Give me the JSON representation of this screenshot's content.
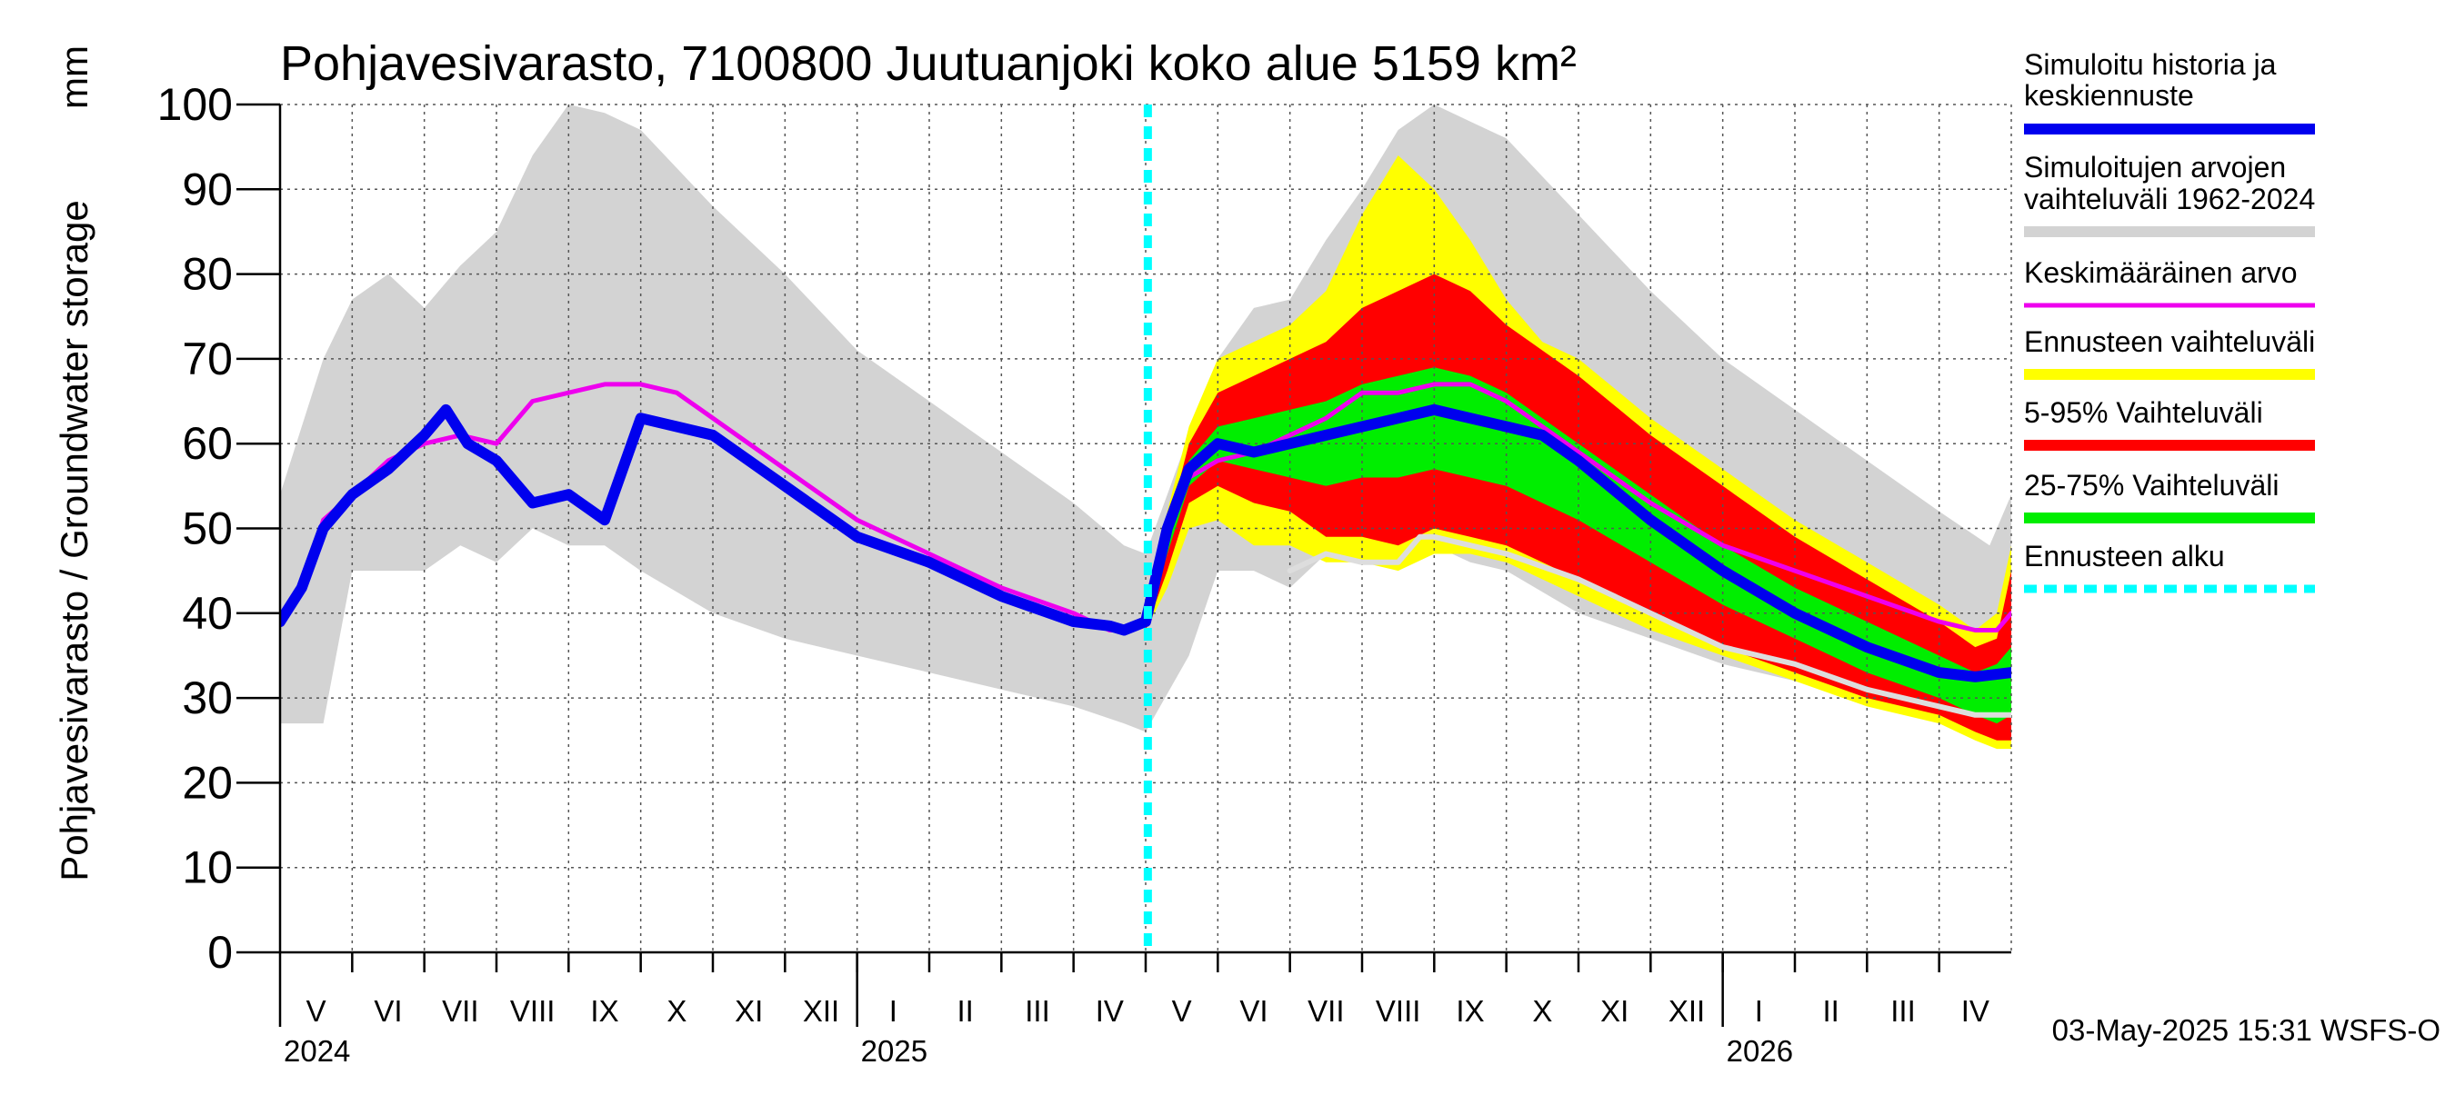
{
  "chart_data": {
    "type": "area",
    "title": "Pohjavesivarasto, 7100800 Juutuanjoki koko alue 5159 km²",
    "ylabel": "Pohjavesivarasto / Groundwater storage",
    "yunit": "mm",
    "ylim": [
      0,
      100
    ],
    "yticks": [
      0,
      10,
      20,
      30,
      40,
      50,
      60,
      70,
      80,
      90,
      100
    ],
    "xlim": [
      0,
      24
    ],
    "x_unit": "months since 1 May 2024",
    "grid": true,
    "months": [
      {
        "label": "V",
        "start": 0
      },
      {
        "label": "VI",
        "start": 1
      },
      {
        "label": "VII",
        "start": 2
      },
      {
        "label": "VIII",
        "start": 3
      },
      {
        "label": "IX",
        "start": 4
      },
      {
        "label": "X",
        "start": 5
      },
      {
        "label": "XI",
        "start": 6
      },
      {
        "label": "XII",
        "start": 7
      },
      {
        "label": "I",
        "start": 8
      },
      {
        "label": "II",
        "start": 9
      },
      {
        "label": "III",
        "start": 10
      },
      {
        "label": "IV",
        "start": 11
      },
      {
        "label": "V",
        "start": 12
      },
      {
        "label": "VI",
        "start": 13
      },
      {
        "label": "VII",
        "start": 14
      },
      {
        "label": "VIII",
        "start": 15
      },
      {
        "label": "IX",
        "start": 16
      },
      {
        "label": "X",
        "start": 17
      },
      {
        "label": "XI",
        "start": 18
      },
      {
        "label": "XII",
        "start": 19
      },
      {
        "label": "I",
        "start": 20
      },
      {
        "label": "II",
        "start": 21
      },
      {
        "label": "III",
        "start": 22
      },
      {
        "label": "IV",
        "start": 23
      }
    ],
    "years": [
      {
        "label": "2024",
        "at": 0
      },
      {
        "label": "2025",
        "at": 8
      },
      {
        "label": "2026",
        "at": 20
      }
    ],
    "year_boundaries": [
      8,
      20
    ],
    "forecast_start": 12.03,
    "timestamp": "03-May-2025 15:31 WSFS-O",
    "legend": [
      {
        "label": "Simuloitu historia ja keskiennuste",
        "color": "#0000ee",
        "style": "solid"
      },
      {
        "label": "Simuloitujen arvojen vaihteluväli 1962-2024",
        "color": "#d3d3d3",
        "style": "solid"
      },
      {
        "label": "Keskimääräinen arvo",
        "color": "#ee00ee",
        "style": "solid"
      },
      {
        "label": "Ennusteen vaihteluväli",
        "color": "#ffff00",
        "style": "solid"
      },
      {
        "label": "5-95% Vaihteluväli",
        "color": "#ff0000",
        "style": "solid"
      },
      {
        "label": "25-75% Vaihteluväli",
        "color": "#00ee00",
        "style": "solid"
      },
      {
        "label": "Ennusteen alku",
        "color": "#00ffff",
        "style": "dashed"
      }
    ],
    "series": [
      {
        "name": "Simuloitujen arvojen vaihteluväli 1962-2024",
        "kind": "band",
        "color": "#d3d3d3",
        "x": [
          0,
          0.6,
          1.0,
          1.5,
          2.0,
          2.5,
          3.0,
          3.5,
          4.0,
          4.5,
          5.0,
          6.0,
          7.0,
          8.0,
          9.0,
          10.0,
          11.0,
          11.7,
          12.0,
          12.6,
          13.0,
          13.5,
          14.0,
          14.5,
          15.0,
          15.5,
          16.0,
          16.5,
          17.0,
          18.0,
          19.0,
          20.0,
          21.0,
          22.0,
          23.0,
          23.7,
          24.0
        ],
        "upper": [
          54,
          70,
          77,
          80,
          76,
          81,
          85,
          94,
          100,
          99,
          97,
          88,
          80,
          71,
          65,
          59,
          53,
          48,
          47,
          61,
          70,
          76,
          77,
          84,
          90,
          97,
          100,
          98,
          96,
          87,
          78,
          70,
          64,
          58,
          52,
          48,
          54
        ],
        "lower": [
          27,
          27,
          45,
          45,
          45,
          48,
          46,
          50,
          48,
          48,
          45,
          40,
          37,
          35,
          33,
          31,
          29,
          27,
          26,
          35,
          45,
          45,
          43,
          47,
          47,
          48,
          48,
          46,
          45,
          40,
          37,
          34,
          32,
          30,
          28,
          26,
          25
        ]
      },
      {
        "name": "Ennusteen vaihteluväli",
        "kind": "band",
        "color": "#ffff00",
        "x": [
          12.0,
          12.3,
          12.6,
          13.0,
          13.5,
          14.0,
          14.5,
          15.0,
          15.5,
          16.0,
          16.5,
          17.0,
          17.5,
          18.0,
          19.0,
          20.0,
          21.0,
          22.0,
          23.0,
          23.5,
          23.8,
          24.0
        ],
        "upper": [
          40,
          52,
          62,
          70,
          72,
          74,
          78,
          87,
          94,
          90,
          84,
          77,
          72,
          70,
          63,
          57,
          51,
          46,
          41,
          38,
          40,
          48
        ],
        "lower": [
          38,
          43,
          50,
          51,
          48,
          48,
          46,
          46,
          45,
          47,
          47,
          46,
          44,
          42,
          38,
          35,
          32,
          29,
          27,
          25,
          24,
          24
        ]
      },
      {
        "name": "5-95% Vaihteluväli",
        "kind": "band",
        "color": "#ff0000",
        "x": [
          12.0,
          12.3,
          12.6,
          13.0,
          13.5,
          14.0,
          14.5,
          15.0,
          15.5,
          16.0,
          16.5,
          17.0,
          17.5,
          18.0,
          19.0,
          20.0,
          21.0,
          22.0,
          23.0,
          23.5,
          23.8,
          24.0
        ],
        "upper": [
          39,
          50,
          60,
          66,
          68,
          70,
          72,
          76,
          78,
          80,
          78,
          74,
          71,
          68,
          61,
          55,
          49,
          44,
          39,
          36,
          37,
          45
        ],
        "lower": [
          38,
          45,
          53,
          55,
          53,
          52,
          49,
          49,
          48,
          50,
          49,
          48,
          46,
          44,
          40,
          36,
          33,
          30,
          28,
          26,
          25,
          25
        ]
      },
      {
        "name": "25-75% Vaihteluväli",
        "kind": "band",
        "color": "#00ee00",
        "x": [
          12.0,
          12.3,
          12.6,
          13.0,
          13.5,
          14.0,
          14.5,
          15.0,
          15.5,
          16.0,
          16.5,
          17.0,
          17.5,
          18.0,
          19.0,
          20.0,
          21.0,
          22.0,
          23.0,
          23.5,
          23.8,
          24.0
        ],
        "upper": [
          38,
          48,
          58,
          62,
          63,
          64,
          65,
          67,
          68,
          69,
          68,
          66,
          63,
          60,
          54,
          48,
          43,
          39,
          35,
          33,
          34,
          36
        ],
        "lower": [
          38,
          47,
          55,
          58,
          57,
          56,
          55,
          56,
          56,
          57,
          56,
          55,
          53,
          51,
          46,
          41,
          37,
          33,
          30,
          28,
          27,
          28
        ]
      },
      {
        "name": "Keskimääräinen arvo",
        "kind": "line",
        "color": "#ee00ee",
        "x": [
          0,
          0.3,
          0.6,
          1.0,
          1.5,
          2.0,
          2.5,
          3.0,
          3.5,
          4.0,
          4.5,
          5.0,
          5.5,
          6.0,
          7.0,
          8.0,
          9.0,
          10.0,
          11.0,
          11.5,
          11.7,
          12.0,
          12.3,
          12.6,
          13.0,
          13.5,
          14.0,
          14.5,
          15.0,
          15.5,
          16.0,
          16.5,
          17.0,
          18.0,
          19.0,
          20.0,
          21.0,
          22.0,
          23.0,
          23.5,
          23.8,
          24.0
        ],
        "y": [
          39,
          43,
          51,
          54,
          58,
          60,
          61,
          60,
          65,
          66,
          67,
          67,
          66,
          63,
          57,
          51,
          47,
          43,
          40,
          38,
          38,
          39,
          50,
          56,
          58,
          59,
          61,
          63,
          66,
          66,
          67,
          67,
          65,
          59,
          53,
          48,
          45,
          42,
          39,
          38,
          38,
          40
        ]
      },
      {
        "name": "Simuloitu historia ja keskiennuste",
        "kind": "line",
        "color": "#0000ee",
        "x": [
          0,
          0.3,
          0.6,
          1.0,
          1.5,
          2.0,
          2.3,
          2.6,
          3.0,
          3.5,
          4.0,
          4.5,
          5.0,
          5.5,
          6.0,
          7.0,
          8.0,
          9.0,
          10.0,
          11.0,
          11.5,
          11.7,
          12.0,
          12.3,
          12.6,
          13.0,
          13.5,
          14.0,
          14.5,
          15.0,
          15.5,
          16.0,
          16.5,
          17.0,
          17.5,
          18.0,
          19.0,
          20.0,
          21.0,
          22.0,
          23.0,
          23.5,
          24.0
        ],
        "y": [
          39,
          43,
          50,
          54,
          57,
          61,
          64,
          60,
          58,
          53,
          54,
          51,
          63,
          62,
          61,
          55,
          49,
          46,
          42,
          39,
          38.5,
          38,
          39,
          50,
          57,
          60,
          59,
          60,
          61,
          62,
          63,
          64,
          63,
          62,
          61,
          58,
          51,
          45,
          40,
          36,
          33,
          32.5,
          33
        ]
      },
      {
        "name": "Simuloitu (alin)",
        "kind": "line",
        "color": "#dddddd",
        "x": [
          14.0,
          14.5,
          15.0,
          15.5,
          15.8,
          16.0,
          16.5,
          17.0,
          18.0,
          19.0,
          20.0,
          21.0,
          22.0,
          23.0,
          23.5,
          24.0
        ],
        "y": [
          45,
          47,
          46,
          46,
          49,
          49,
          48,
          47,
          44,
          40,
          36,
          34,
          31,
          29,
          28,
          28
        ]
      }
    ]
  }
}
